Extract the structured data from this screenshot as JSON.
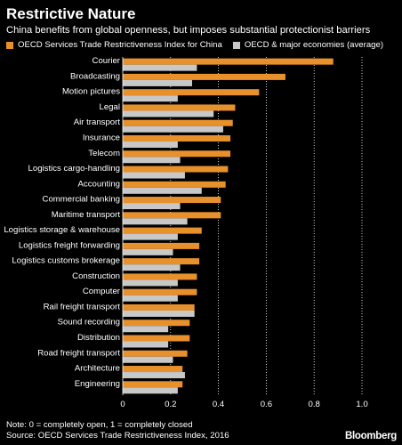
{
  "header": {
    "title": "Restrictive Nature",
    "subtitle": "China benefits from global openness, but imposes substantial protectionist barriers"
  },
  "legend": [
    {
      "label": "OECD Services Trade Restrictiveness Index for China",
      "color": "#e8912c"
    },
    {
      "label": "OECD & major economies (average)",
      "color": "#c8c8c8"
    }
  ],
  "footer": {
    "note": "Note: 0 = completely open, 1 = completely closed",
    "source": "Source: OECD Services Trade Restrictiveness Index, 2016",
    "brand": "Bloomberg"
  },
  "chart_data": {
    "type": "bar",
    "orientation": "horizontal",
    "categories": [
      "Courier",
      "Broadcasting",
      "Motion pictures",
      "Legal",
      "Air transport",
      "Insurance",
      "Telecom",
      "Logistics cargo-handling",
      "Accounting",
      "Commercial banking",
      "Maritime transport",
      "Logistics storage & warehouse",
      "Logistics freight forwarding",
      "Logistics customs brokerage",
      "Construction",
      "Computer",
      "Rail freight transport",
      "Sound recording",
      "Distribution",
      "Road freight transport",
      "Architecture",
      "Engineering"
    ],
    "series": [
      {
        "name": "OECD Services Trade Restrictiveness Index for China",
        "color": "#e8912c",
        "values": [
          0.88,
          0.68,
          0.57,
          0.47,
          0.46,
          0.45,
          0.45,
          0.44,
          0.43,
          0.41,
          0.41,
          0.33,
          0.32,
          0.32,
          0.31,
          0.31,
          0.3,
          0.28,
          0.28,
          0.27,
          0.25,
          0.25
        ]
      },
      {
        "name": "OECD & major economies (average)",
        "color": "#c8c8c8",
        "values": [
          0.31,
          0.29,
          0.23,
          0.38,
          0.42,
          0.23,
          0.24,
          0.26,
          0.33,
          0.24,
          0.27,
          0.23,
          0.21,
          0.24,
          0.23,
          0.23,
          0.3,
          0.19,
          0.19,
          0.21,
          0.26,
          0.23
        ]
      }
    ],
    "xlim": [
      0,
      1.0
    ],
    "xticks": [
      0,
      0.2,
      0.4,
      0.6,
      0.8,
      1.0
    ],
    "xtick_labels": [
      "0",
      "0.2",
      "0.4",
      "0.6",
      "0.8",
      "1.0"
    ],
    "grid": "vertical dotted"
  }
}
